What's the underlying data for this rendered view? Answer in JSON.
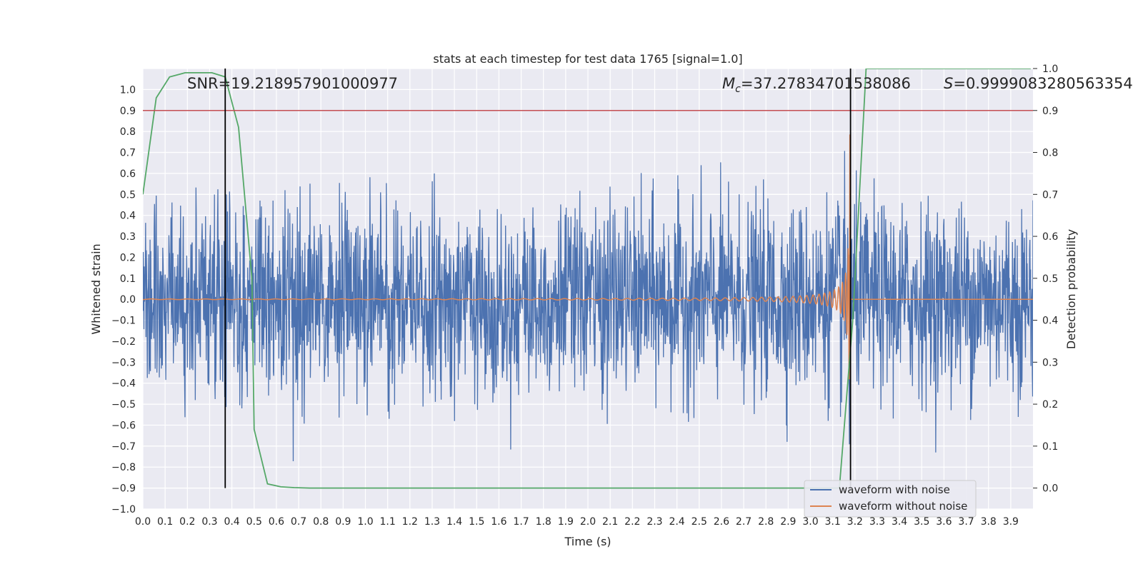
{
  "chart_data": {
    "type": "line",
    "title": "stats at each timestep for test data 1765 [signal=1.0]",
    "xlabel": "Time (s)",
    "ylabel": "Whitened strain",
    "y2label": "Detection probability",
    "xlim": [
      0.0,
      4.0
    ],
    "ylim": [
      -1.0,
      1.1
    ],
    "y2lim": [
      -0.05,
      1.0
    ],
    "x_ticks": [
      "0.0",
      "0.1",
      "0.2",
      "0.3",
      "0.4",
      "0.5",
      "0.6",
      "0.7",
      "0.8",
      "0.9",
      "1.0",
      "1.1",
      "1.2",
      "1.3",
      "1.4",
      "1.5",
      "1.6",
      "1.7",
      "1.8",
      "1.9",
      "2.0",
      "2.1",
      "2.2",
      "2.3",
      "2.4",
      "2.5",
      "2.6",
      "2.7",
      "2.8",
      "2.9",
      "3.0",
      "3.1",
      "3.2",
      "3.3",
      "3.4",
      "3.5",
      "3.6",
      "3.7",
      "3.8",
      "3.9"
    ],
    "y_ticks": [
      "-1.0",
      "-0.9",
      "-0.8",
      "-0.7",
      "-0.6",
      "-0.5",
      "-0.4",
      "-0.3",
      "-0.2",
      "-0.1",
      "0.0",
      "0.1",
      "0.2",
      "0.3",
      "0.4",
      "0.5",
      "0.6",
      "0.7",
      "0.8",
      "0.9",
      "1.0"
    ],
    "y2_ticks": [
      "0.0",
      "0.1",
      "0.2",
      "0.3",
      "0.4",
      "0.5",
      "0.6",
      "0.7",
      "0.8",
      "0.9",
      "1.0"
    ],
    "grid": true,
    "legend_position": "bottom-right",
    "annotations": {
      "snr": "SNR=19.218957901000977",
      "mc": "$M_c$=37.27834701538086",
      "mc_symbol": "M",
      "mc_subscript": "c",
      "mc_value": "=37.27834701538086",
      "s": "$S$=0.9999083280563354",
      "s_symbol": "S",
      "s_value": "=0.9999083280563354"
    },
    "series": [
      {
        "name": "waveform with noise",
        "color": "#4c72b0",
        "axis": "left",
        "description": "dense noisy whitened strain, amplitude roughly within -0.6..0.6 with spikes to about +0.8/-0.85"
      },
      {
        "name": "waveform without noise",
        "color": "#dd8452",
        "axis": "left",
        "description": "chirp signal, amplitude growing to merger near t≈3.18 s, flat 0.0 afterwards",
        "merger_time": 3.18
      },
      {
        "color": "#55a868",
        "axis": "right",
        "x": [
          0.0,
          0.06,
          0.12,
          0.19,
          0.25,
          0.31,
          0.37,
          0.43,
          0.49,
          0.5,
          0.56,
          0.62,
          0.68,
          0.75,
          1.0,
          2.0,
          3.0,
          3.13,
          3.19,
          3.25,
          3.99
        ],
        "y": [
          0.7,
          0.93,
          0.98,
          0.99,
          0.99,
          0.99,
          0.98,
          0.86,
          0.5,
          0.14,
          0.01,
          0.003,
          0.001,
          0.0,
          0.0,
          0.0,
          0.0,
          0.0,
          0.4,
          1.0,
          1.0
        ]
      }
    ],
    "threshold": {
      "axis": "right",
      "value": 0.9,
      "color": "#c44e52"
    },
    "vertical_markers": [
      {
        "x": 0.37,
        "color": "#000000"
      },
      {
        "x": 3.18,
        "color": "#000000"
      }
    ]
  }
}
